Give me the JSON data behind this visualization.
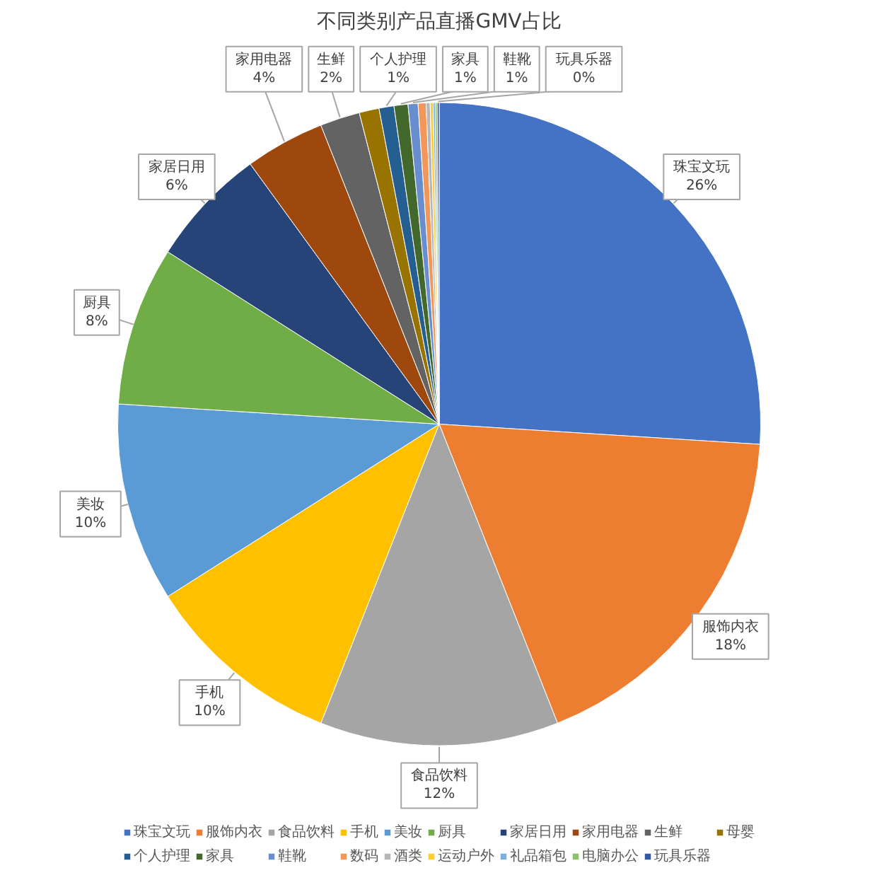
{
  "chart_data": {
    "type": "pie",
    "title": "不同类别产品直播GMV占比",
    "categories": [
      "珠宝文玩",
      "服饰内衣",
      "食品饮料",
      "手机",
      "美妆",
      "厨具",
      "家居日用",
      "家用电器",
      "生鲜",
      "母婴",
      "个人护理",
      "家具",
      "鞋靴",
      "数码",
      "酒类",
      "运动户外",
      "礼品箱包",
      "电脑办公",
      "玩具乐器"
    ],
    "values": [
      26,
      18,
      12,
      10,
      10,
      8,
      6,
      4,
      2,
      1,
      0.75,
      0.7,
      0.5,
      0.4,
      0.2,
      0.15,
      0.1,
      0.1,
      0.1
    ],
    "value_labels": [
      "26%",
      "18%",
      "12%",
      "10%",
      "10%",
      "8%",
      "6%",
      "4%",
      "2%",
      null,
      "1%",
      "1%",
      "1%",
      null,
      null,
      null,
      null,
      null,
      "0%"
    ],
    "colors": [
      "#4472c4",
      "#ed7d31",
      "#a5a5a5",
      "#ffc000",
      "#5b9bd5",
      "#70ad47",
      "#264478",
      "#9e480e",
      "#636363",
      "#997300",
      "#255e91",
      "#43682b",
      "#698ed0",
      "#f1975a",
      "#b7b7b7",
      "#ffcd33",
      "#7cafdd",
      "#8cc168",
      "#335aa1"
    ],
    "legend": "bottom"
  }
}
